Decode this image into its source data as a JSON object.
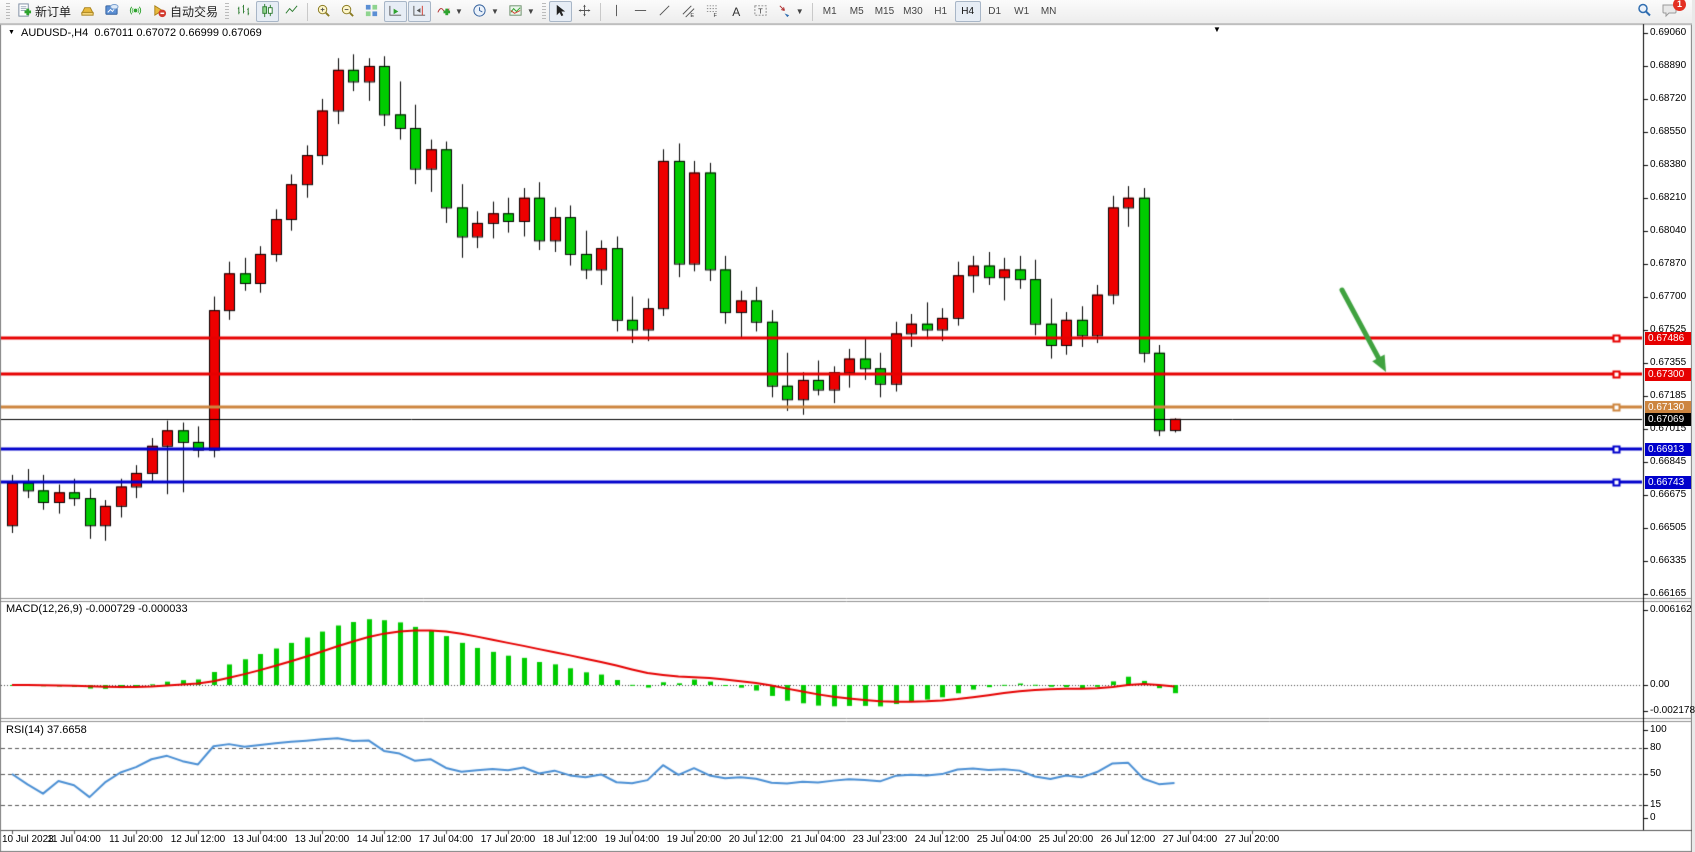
{
  "toolbar": {
    "new_order_label": "新订单",
    "auto_trading_label": "自动交易",
    "timeframes": [
      "M1",
      "M5",
      "M15",
      "M30",
      "H1",
      "H4",
      "D1",
      "W1",
      "MN"
    ],
    "active_timeframe": "H4",
    "notification_count": "1"
  },
  "chart": {
    "title_symbol": "AUDUSD-,H4",
    "title_ohlc": "0.67011 0.67072 0.66999 0.67069"
  },
  "chart_data": {
    "type": "candlestick",
    "symbol": "AUDUSD",
    "timeframe": "H4",
    "title": "AUDUSD-,H4  0.67011 0.67072 0.66999 0.67069",
    "colors": {
      "bull": "#ee0000",
      "bear": "#00cc00",
      "outline": "#000000",
      "macd_hist": "#00cc00",
      "macd_signal": "#e60000",
      "rsi_line": "#4a8fd4",
      "hline_red": "#e60000",
      "hline_orange": "#cd853f",
      "hline_blue": "#0000cc",
      "price_line": "#000000",
      "arrow": "#3fa23f",
      "background": "#ffffff"
    },
    "price_axis": {
      "ticks": [
        "0.69060",
        "0.68890",
        "0.68720",
        "0.68550",
        "0.68380",
        "0.68210",
        "0.68040",
        "0.67870",
        "0.67700",
        "0.67525",
        "0.67355",
        "0.67185",
        "0.67015",
        "0.66845",
        "0.66675",
        "0.66505",
        "0.66335",
        "0.66165"
      ]
    },
    "x_labels": [
      "10 Jul 2023",
      "11 Jul 04:00",
      "11 Jul 20:00",
      "12 Jul 12:00",
      "13 Jul 04:00",
      "13 Jul 20:00",
      "14 Jul 12:00",
      "17 Jul 04:00",
      "17 Jul 20:00",
      "18 Jul 12:00",
      "19 Jul 04:00",
      "19 Jul 20:00",
      "20 Jul 12:00",
      "21 Jul 04:00",
      "23 Jul 23:00",
      "24 Jul 12:00",
      "25 Jul 04:00",
      "25 Jul 20:00",
      "26 Jul 12:00",
      "27 Jul 04:00",
      "27 Jul 20:00"
    ],
    "candles": [
      [
        0.6652,
        0.6678,
        0.6648,
        0.6674
      ],
      [
        0.6674,
        0.6681,
        0.6666,
        0.667
      ],
      [
        0.667,
        0.6678,
        0.666,
        0.6664
      ],
      [
        0.6664,
        0.6673,
        0.6658,
        0.6669
      ],
      [
        0.6669,
        0.6676,
        0.6662,
        0.6666
      ],
      [
        0.6666,
        0.6671,
        0.6645,
        0.6652
      ],
      [
        0.6652,
        0.6665,
        0.6644,
        0.6662
      ],
      [
        0.6662,
        0.6676,
        0.6656,
        0.6672
      ],
      [
        0.6672,
        0.6683,
        0.6666,
        0.6679
      ],
      [
        0.6679,
        0.6697,
        0.6674,
        0.6693
      ],
      [
        0.6693,
        0.6706,
        0.6668,
        0.6701
      ],
      [
        0.6701,
        0.6705,
        0.6669,
        0.6695
      ],
      [
        0.6695,
        0.6703,
        0.6687,
        0.6691
      ],
      [
        0.6691,
        0.677,
        0.6687,
        0.6763
      ],
      [
        0.6763,
        0.6788,
        0.6758,
        0.6782
      ],
      [
        0.6782,
        0.679,
        0.6773,
        0.6777
      ],
      [
        0.6777,
        0.6796,
        0.6772,
        0.6792
      ],
      [
        0.6792,
        0.6815,
        0.6788,
        0.681
      ],
      [
        0.681,
        0.6833,
        0.6804,
        0.6828
      ],
      [
        0.6828,
        0.6848,
        0.6821,
        0.6843
      ],
      [
        0.6843,
        0.6872,
        0.6838,
        0.6866
      ],
      [
        0.6866,
        0.6893,
        0.6859,
        0.6887
      ],
      [
        0.6887,
        0.6895,
        0.6876,
        0.6881
      ],
      [
        0.6881,
        0.6893,
        0.6871,
        0.6889
      ],
      [
        0.6889,
        0.6894,
        0.6858,
        0.6864
      ],
      [
        0.6864,
        0.6881,
        0.6851,
        0.6857
      ],
      [
        0.6857,
        0.6869,
        0.6828,
        0.6836
      ],
      [
        0.6836,
        0.6851,
        0.6824,
        0.6846
      ],
      [
        0.6846,
        0.685,
        0.6808,
        0.6816
      ],
      [
        0.6816,
        0.6828,
        0.679,
        0.6801
      ],
      [
        0.6801,
        0.6814,
        0.6795,
        0.6808
      ],
      [
        0.6808,
        0.6819,
        0.68,
        0.6813
      ],
      [
        0.6813,
        0.6821,
        0.6803,
        0.6809
      ],
      [
        0.6809,
        0.6826,
        0.6801,
        0.6821
      ],
      [
        0.6821,
        0.6829,
        0.6794,
        0.6799
      ],
      [
        0.6799,
        0.6816,
        0.6793,
        0.6811
      ],
      [
        0.6811,
        0.6817,
        0.6786,
        0.6792
      ],
      [
        0.6792,
        0.6804,
        0.6779,
        0.6784
      ],
      [
        0.6784,
        0.6799,
        0.6776,
        0.6795
      ],
      [
        0.6795,
        0.6801,
        0.6752,
        0.6758
      ],
      [
        0.6758,
        0.677,
        0.6746,
        0.6753
      ],
      [
        0.6753,
        0.6769,
        0.6747,
        0.6764
      ],
      [
        0.6764,
        0.6846,
        0.676,
        0.684
      ],
      [
        0.684,
        0.6849,
        0.678,
        0.6787
      ],
      [
        0.6787,
        0.684,
        0.6783,
        0.6834
      ],
      [
        0.6834,
        0.6839,
        0.6778,
        0.6784
      ],
      [
        0.6784,
        0.6791,
        0.6756,
        0.6762
      ],
      [
        0.6762,
        0.6773,
        0.6749,
        0.6768
      ],
      [
        0.6768,
        0.6775,
        0.6752,
        0.6757
      ],
      [
        0.6757,
        0.6763,
        0.6718,
        0.6724
      ],
      [
        0.6724,
        0.6741,
        0.6711,
        0.6717
      ],
      [
        0.6717,
        0.6731,
        0.6709,
        0.6727
      ],
      [
        0.6727,
        0.6737,
        0.6719,
        0.6722
      ],
      [
        0.6722,
        0.6734,
        0.6715,
        0.6731
      ],
      [
        0.6731,
        0.6743,
        0.6723,
        0.6738
      ],
      [
        0.6738,
        0.6749,
        0.6727,
        0.6733
      ],
      [
        0.6733,
        0.6741,
        0.6718,
        0.6725
      ],
      [
        0.6725,
        0.6757,
        0.6721,
        0.6751
      ],
      [
        0.6751,
        0.6761,
        0.6744,
        0.6756
      ],
      [
        0.6756,
        0.6767,
        0.6748,
        0.6753
      ],
      [
        0.6753,
        0.6764,
        0.6747,
        0.6759
      ],
      [
        0.6759,
        0.6788,
        0.6755,
        0.6781
      ],
      [
        0.6781,
        0.6791,
        0.6772,
        0.6786
      ],
      [
        0.6786,
        0.6793,
        0.6776,
        0.678
      ],
      [
        0.678,
        0.679,
        0.6768,
        0.6784
      ],
      [
        0.6784,
        0.6791,
        0.6774,
        0.6779
      ],
      [
        0.6779,
        0.6789,
        0.675,
        0.6756
      ],
      [
        0.6756,
        0.6769,
        0.6738,
        0.6745
      ],
      [
        0.6745,
        0.6762,
        0.674,
        0.6758
      ],
      [
        0.6758,
        0.6765,
        0.6744,
        0.675
      ],
      [
        0.675,
        0.6776,
        0.6746,
        0.6771
      ],
      [
        0.6771,
        0.6822,
        0.6766,
        0.6816
      ],
      [
        0.6816,
        0.6827,
        0.6806,
        0.6821
      ],
      [
        0.6821,
        0.6826,
        0.6736,
        0.6741
      ],
      [
        0.6741,
        0.6745,
        0.6698,
        0.6701
      ],
      [
        0.67011,
        0.67072,
        0.66999,
        0.67069
      ]
    ],
    "hlines": [
      {
        "price": 0.67486,
        "label": "0.67486",
        "color": "#e60000",
        "width": 3
      },
      {
        "price": 0.673,
        "label": "0.67300",
        "color": "#e60000",
        "width": 3
      },
      {
        "price": 0.6713,
        "label": "0.67130",
        "color": "#cd853f",
        "width": 3
      },
      {
        "price": 0.66913,
        "label": "0.66913",
        "color": "#0000cc",
        "width": 3
      },
      {
        "price": 0.66743,
        "label": "0.66743",
        "color": "#0000cc",
        "width": 3
      }
    ],
    "current_price": {
      "value": 0.67069,
      "label": "0.67069"
    },
    "annotations": [
      {
        "type": "arrow",
        "color": "#3fa23f",
        "x1": 1342,
        "y1": 290,
        "x2": 1386,
        "y2": 372
      }
    ],
    "indicators": [
      {
        "name": "MACD",
        "label": "MACD(12,26,9) -0.000729 -0.000033",
        "params": "12,26,9",
        "value_main": "-0.000729",
        "value_signal": "-0.000033",
        "y_ticks": [
          "0.006162",
          "0.00",
          "-0.002178"
        ]
      },
      {
        "name": "RSI",
        "label": "RSI(14) 37.6658",
        "period": "14",
        "value": "37.6658",
        "levels": [
          80,
          50,
          15
        ],
        "y_ticks": [
          "100",
          "80",
          "50",
          "15",
          "0"
        ]
      }
    ]
  }
}
